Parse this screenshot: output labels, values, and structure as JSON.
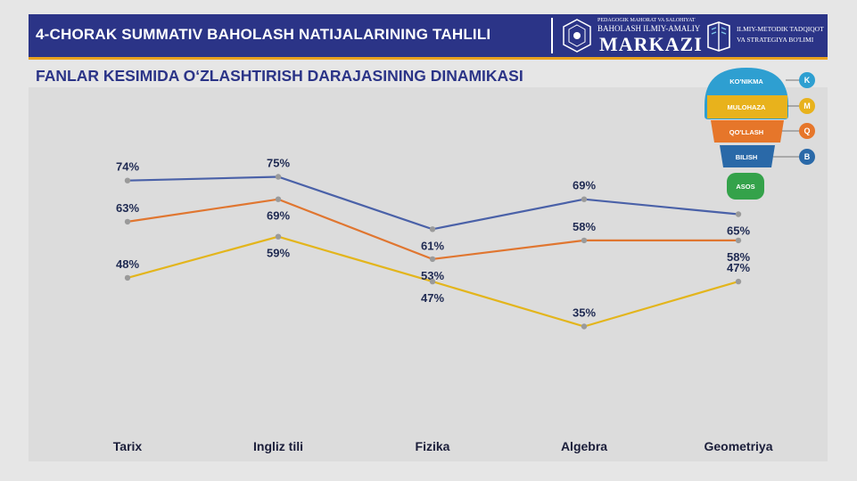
{
  "header": {
    "title": "4-CHORAK SUMMATIV BAHOLASH NATIJALARINING TAHLILI",
    "org_line_small": "PEDAGOGIK MAHORAT VA SALOHIYAT",
    "org_line_mid": "BAHOLASH ILMIY-AMALIY",
    "org_line_big": "MARKAZI",
    "dept_line_1": "ILMIY-METODIK TADQIQOT",
    "dept_line_2": "VA STRATEGIYA BO'LIMI"
  },
  "subtitle": "FANLAR KESIMIDA O‘ZLASHTIRISH DARAJASINING DINAMIKASI",
  "levels": [
    {
      "label": "KO'NIKMA",
      "letter": "K",
      "color": "#2e9fd1"
    },
    {
      "label": "MULOHAZA",
      "letter": "M",
      "color": "#e8b21c"
    },
    {
      "label": "QO'LLASH",
      "letter": "Q",
      "color": "#e6762a"
    },
    {
      "label": "BILISH",
      "letter": "B",
      "color": "#2a69a8"
    },
    {
      "label": "ASOS",
      "letter": "",
      "color": "#34a24a"
    }
  ],
  "chart_data": {
    "type": "line",
    "categories": [
      "Tarix",
      "Ingliz tili",
      "Fizika",
      "Algebra",
      "Geometriya"
    ],
    "series": [
      {
        "color": "#4a61a8",
        "values": [
          74,
          75,
          61,
          69,
          65
        ],
        "labels": [
          "74%",
          "75%",
          "61%",
          "69%",
          "65%"
        ]
      },
      {
        "color": "#e07630",
        "values": [
          63,
          69,
          53,
          58,
          58
        ],
        "labels": [
          "63%",
          "69%",
          "53%",
          "58%",
          "58%"
        ]
      },
      {
        "color": "#e3b51c",
        "values": [
          48,
          59,
          47,
          35,
          47
        ],
        "labels": [
          "48%",
          "59%",
          "47%",
          "35%",
          "47%"
        ]
      }
    ],
    "grid": false,
    "legend": "none"
  }
}
